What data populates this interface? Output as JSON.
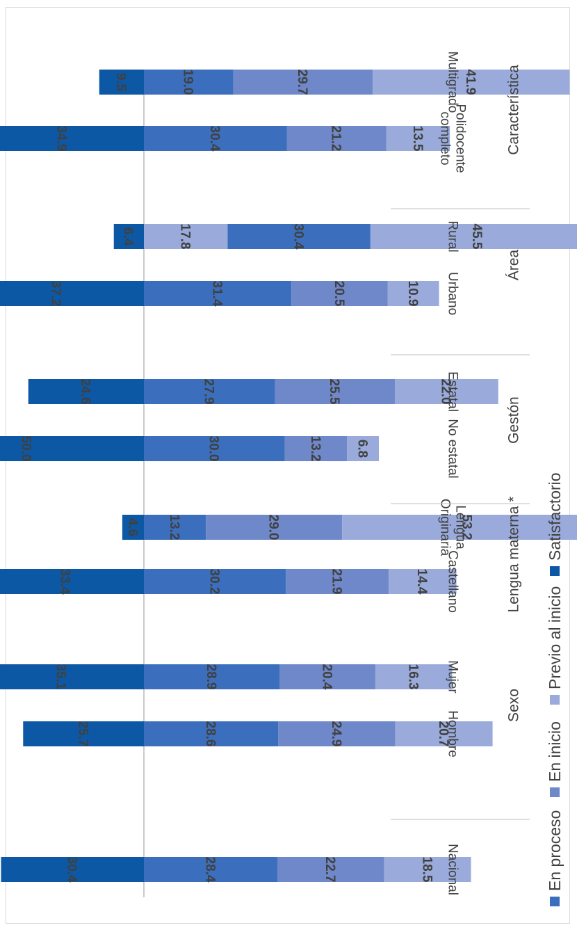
{
  "chart_data": {
    "type": "bar",
    "orientation": "diverging-stacked, rotated 90 degrees clockwise",
    "categories": [
      "Nacional",
      "Hombre",
      "Mujer",
      "Castellano",
      "Lengua\nOriginaria",
      "No estatal",
      "Estatal",
      "Urbano",
      "Rural",
      "Polidocente\ncompleto",
      "Multigrado"
    ],
    "groups": [
      {
        "label": "Sexo",
        "categories": [
          "Hombre",
          "Mujer"
        ]
      },
      {
        "label": "Lengua materna *",
        "categories": [
          "Castellano",
          "Lengua\nOriginaria"
        ]
      },
      {
        "label": "Gestón",
        "categories": [
          "No estatal",
          "Estatal"
        ]
      },
      {
        "label": "Área",
        "categories": [
          "Urbano",
          "Rural"
        ]
      },
      {
        "label": "Característica",
        "categories": [
          "Polidocente\ncompleto",
          "Multigrado"
        ]
      }
    ],
    "series": [
      {
        "name": "Previo al inicio",
        "color": "#9aabdb",
        "values": [
          18.5,
          20.7,
          16.3,
          14.4,
          53.2,
          6.8,
          22.0,
          10.9,
          45.5,
          13.5,
          41.9
        ]
      },
      {
        "name": "En inicio",
        "color": "#6e88c9",
        "values": [
          22.7,
          24.9,
          20.4,
          21.9,
          29.0,
          13.2,
          25.5,
          20.5,
          30.4,
          21.2,
          29.7
        ]
      },
      {
        "name": "En proceso",
        "color": "#3b6fbd",
        "values": [
          28.4,
          28.6,
          28.9,
          30.2,
          13.2,
          30.0,
          27.9,
          31.4,
          17.8,
          30.4,
          19.0
        ]
      },
      {
        "name": "Satisfactorio",
        "color": "#0d58a4",
        "values": [
          30.4,
          25.7,
          35.1,
          33.4,
          4.6,
          50.0,
          24.6,
          37.2,
          6.4,
          34.9,
          9.5
        ]
      }
    ],
    "value_labels": [
      [
        "18.5",
        "20.7",
        "16.3",
        "14.4",
        "53.2",
        "6.8",
        "22.0",
        "10.9",
        "45.5",
        "13.5",
        "41.9"
      ],
      [
        "22.7",
        "24.9",
        "20.4",
        "21.9",
        "29.0",
        "13.2",
        "25.5",
        "20.5",
        "30.4",
        "21.2",
        "29.7"
      ],
      [
        "28.4",
        "28.6",
        "28.9",
        "30.2",
        "13.2",
        "30.0",
        "27.9",
        "31.4",
        "17.8",
        "30.4",
        "19.0"
      ],
      [
        "30.4",
        "25.7",
        "35.1",
        "33.4",
        "4.6",
        "50.0",
        "24.6",
        "37.2",
        "6.4",
        "34.9",
        "9.5"
      ]
    ],
    "legend": {
      "placement": "bottom",
      "items": [
        "En proceso",
        "En inicio",
        "Previo al inicio",
        "Satisfactorio"
      ]
    },
    "rural_segment_colors": [
      "#9aabdb",
      "#3b6fbd",
      "#9aabdb"
    ],
    "baseline_color": "#a6a6a6",
    "grid": false
  }
}
